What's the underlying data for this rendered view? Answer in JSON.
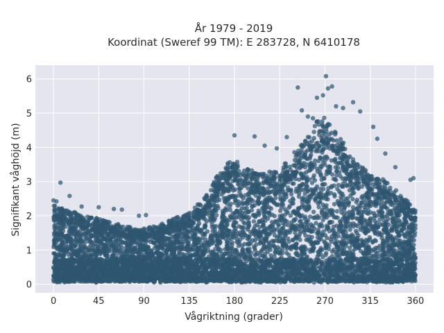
{
  "chart_data": {
    "type": "scatter",
    "title_lines": [
      "År 1979 - 2019",
      "Koordinat (Sweref 99 TM): E 283728, N 6410178"
    ],
    "xlabel": "Vågriktning (grader)",
    "ylabel": "Signifikant våghöjd (m)",
    "xlim": [
      -18,
      378
    ],
    "ylim": [
      -0.25,
      6.4
    ],
    "xticks": [
      0,
      45,
      90,
      135,
      180,
      225,
      270,
      315,
      360
    ],
    "yticks": [
      0,
      1,
      2,
      3,
      4,
      5,
      6
    ],
    "grid": true,
    "marker_color": "#2f5670",
    "background_color": "#e5e5ef",
    "upper_envelope": [
      [
        0,
        2.2
      ],
      [
        15,
        2.05
      ],
      [
        30,
        1.95
      ],
      [
        45,
        1.85
      ],
      [
        60,
        1.7
      ],
      [
        75,
        1.6
      ],
      [
        90,
        1.55
      ],
      [
        105,
        1.65
      ],
      [
        120,
        1.85
      ],
      [
        135,
        2.0
      ],
      [
        150,
        2.4
      ],
      [
        160,
        2.9
      ],
      [
        170,
        3.3
      ],
      [
        180,
        3.5
      ],
      [
        195,
        3.2
      ],
      [
        210,
        3.1
      ],
      [
        225,
        3.2
      ],
      [
        240,
        3.7
      ],
      [
        255,
        4.2
      ],
      [
        265,
        4.7
      ],
      [
        275,
        4.6
      ],
      [
        285,
        4.1
      ],
      [
        300,
        3.4
      ],
      [
        315,
        3.1
      ],
      [
        330,
        2.9
      ],
      [
        345,
        2.5
      ],
      [
        360,
        2.1
      ]
    ],
    "outliers": [
      [
        0,
        2.45
      ],
      [
        3,
        2.42
      ],
      [
        7,
        2.97
      ],
      [
        16,
        2.58
      ],
      [
        28,
        2.27
      ],
      [
        45,
        2.25
      ],
      [
        60,
        2.2
      ],
      [
        68,
        2.18
      ],
      [
        85,
        2.0
      ],
      [
        92,
        2.02
      ],
      [
        180,
        4.35
      ],
      [
        200,
        4.32
      ],
      [
        210,
        4.05
      ],
      [
        222,
        3.97
      ],
      [
        232,
        4.3
      ],
      [
        243,
        5.75
      ],
      [
        247,
        5.08
      ],
      [
        253,
        4.9
      ],
      [
        258,
        4.85
      ],
      [
        262,
        5.45
      ],
      [
        268,
        5.52
      ],
      [
        271,
        6.08
      ],
      [
        273,
        5.72
      ],
      [
        277,
        5.78
      ],
      [
        281,
        5.2
      ],
      [
        288,
        5.15
      ],
      [
        298,
        5.32
      ],
      [
        305,
        5.05
      ],
      [
        318,
        4.6
      ],
      [
        322,
        4.25
      ],
      [
        330,
        3.82
      ],
      [
        340,
        3.42
      ],
      [
        355,
        3.05
      ],
      [
        358,
        3.1
      ]
    ]
  }
}
